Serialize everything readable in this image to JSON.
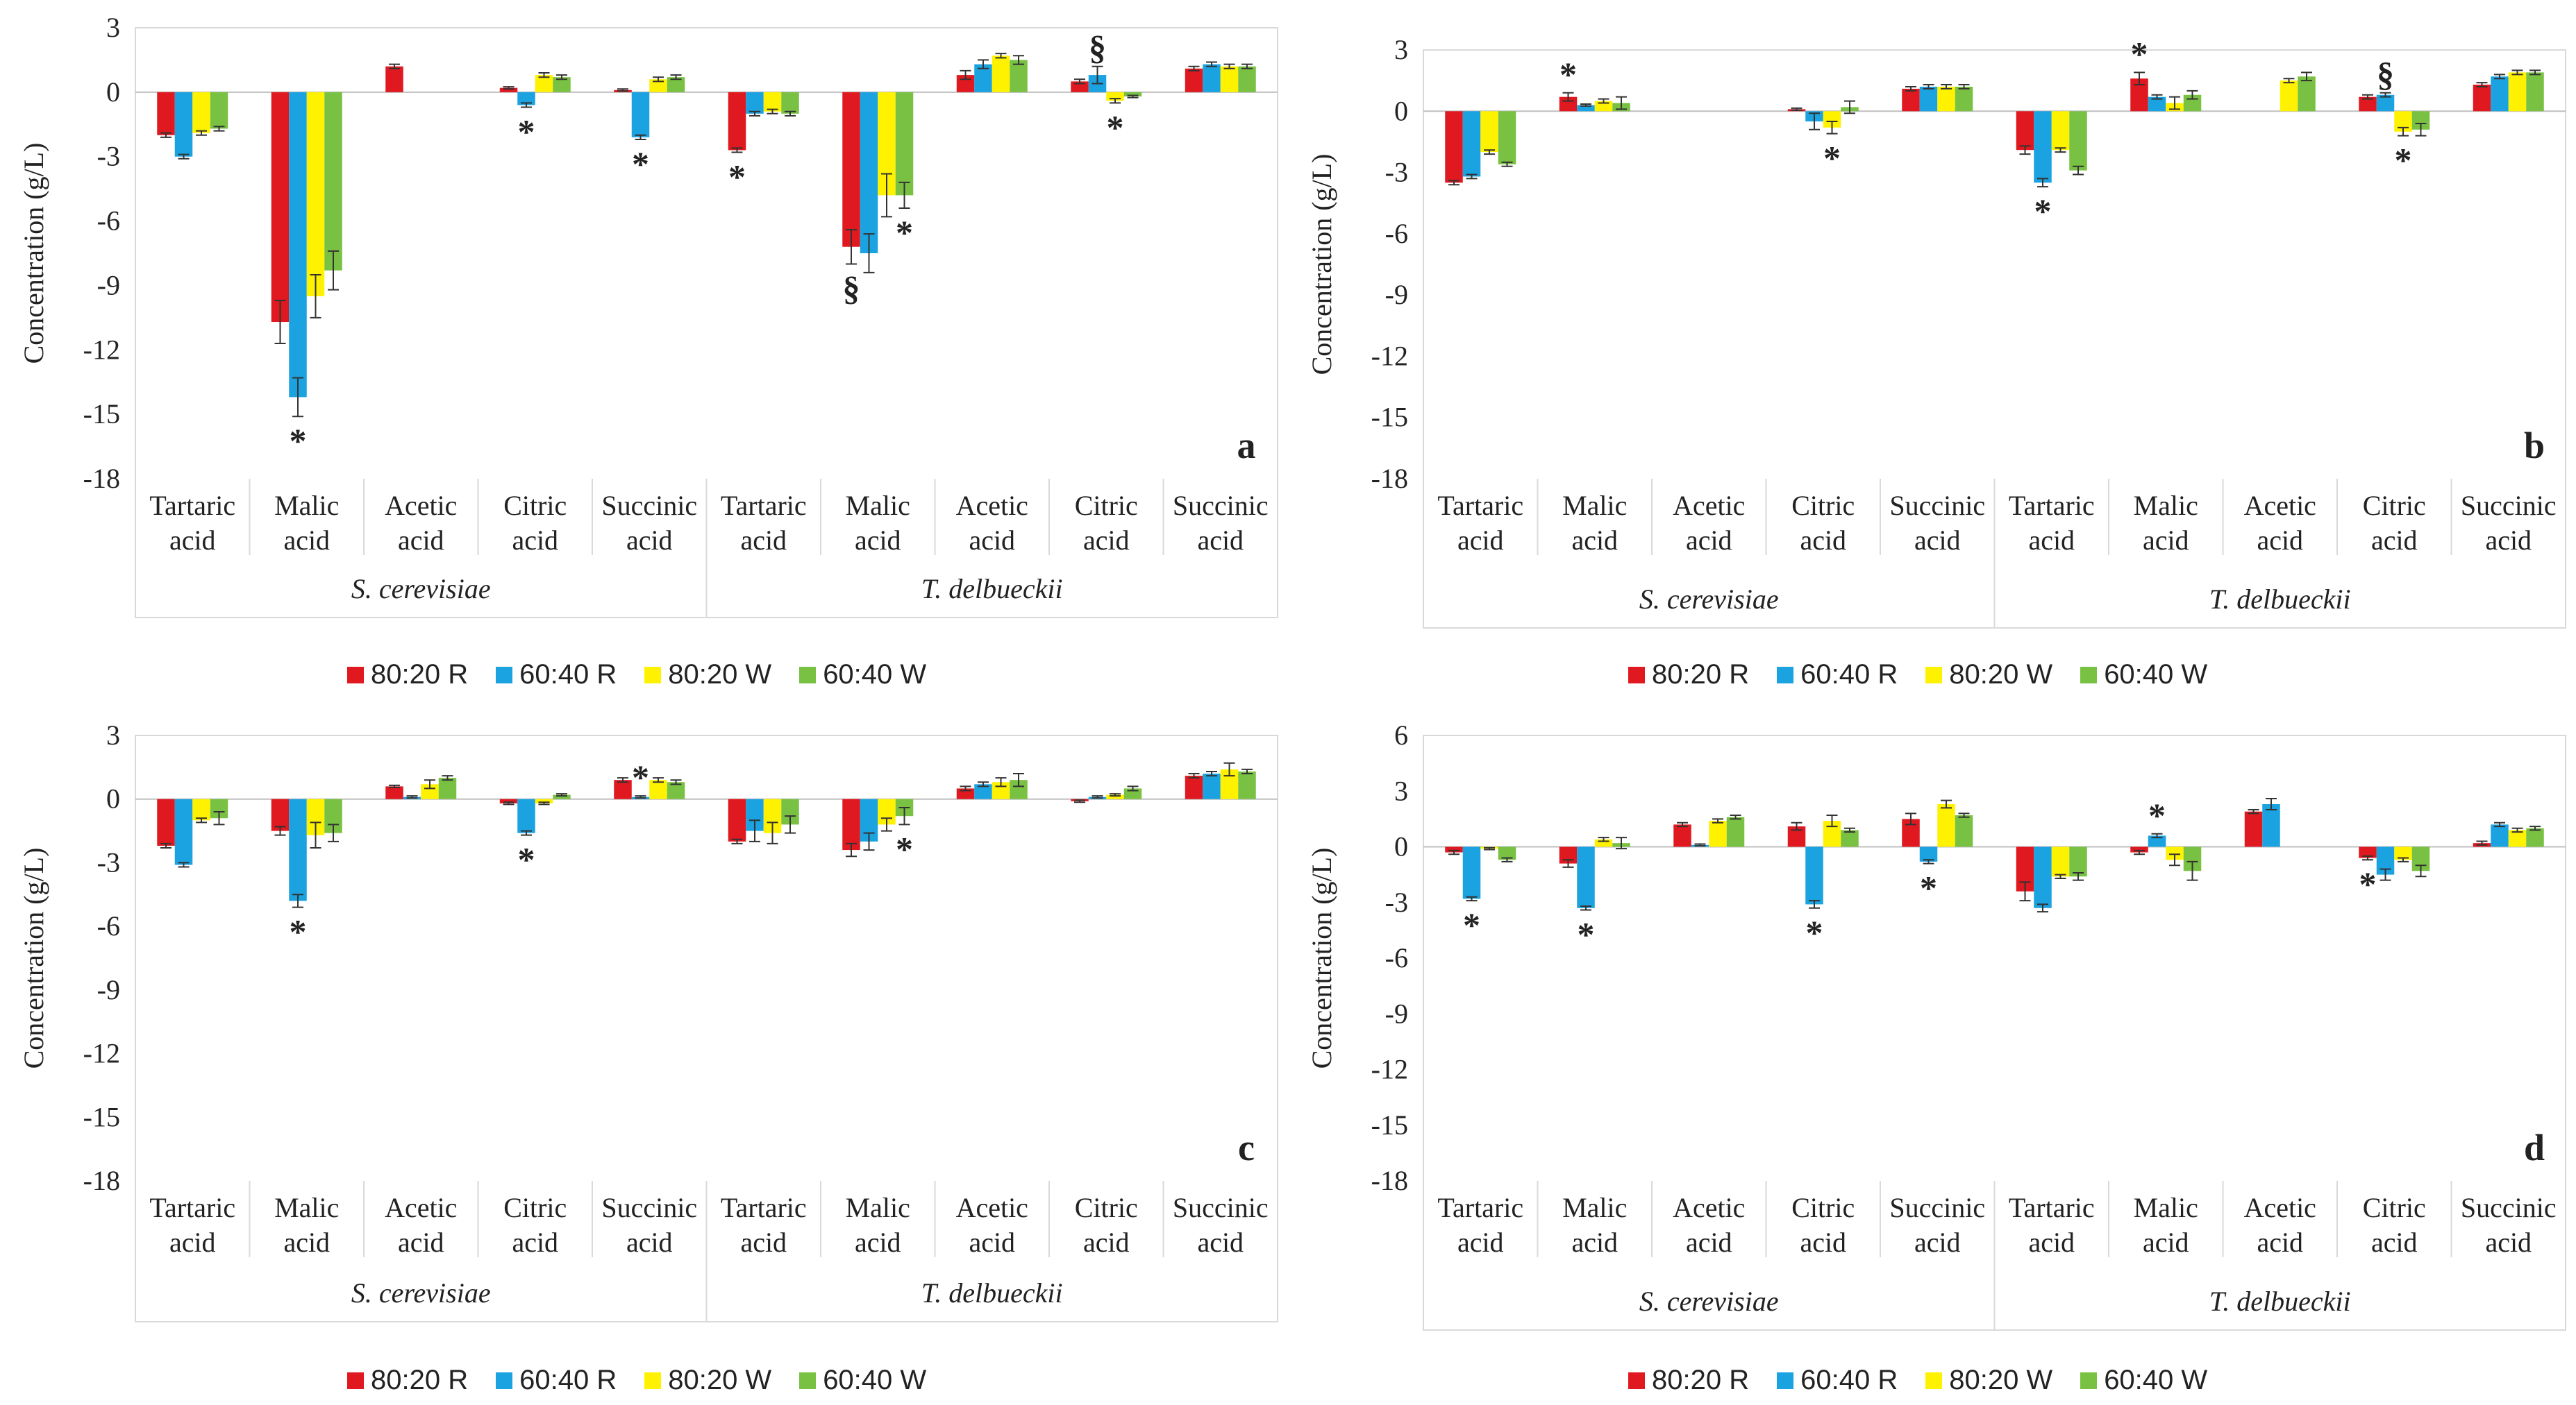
{
  "colors": {
    "s0": "#e0181f",
    "s1": "#1ba2e0",
    "s2": "#fff200",
    "s3": "#79c143"
  },
  "groups": [
    "S. cerevisiae",
    "T. delbueckii"
  ],
  "legend": [
    "80:20 R",
    "60:40 R",
    "80:20 W",
    "60:40 W"
  ],
  "chart_data": [
    {
      "type": "bar",
      "label": "a",
      "ylabel": "Concentration  (g/L)",
      "ylim": [
        -18,
        3
      ],
      "yticks": [
        3,
        0,
        -3,
        -6,
        -9,
        -12,
        -15,
        -18
      ],
      "categories": [
        [
          "Tartaric",
          "acid"
        ],
        [
          "Malic",
          "acid"
        ],
        [
          "Acetic",
          "acid"
        ],
        [
          "Citric",
          "acid"
        ],
        [
          "Succinic",
          "acid"
        ],
        [
          "Tartaric",
          "acid"
        ],
        [
          "Malic",
          "acid"
        ],
        [
          "Acetic",
          "acid"
        ],
        [
          "Citric",
          "acid"
        ],
        [
          "Succinic",
          "acid"
        ]
      ],
      "series": [
        {
          "name": "80:20 R",
          "values": [
            -2.0,
            -10.7,
            1.2,
            0.2,
            0.1,
            -2.7,
            -7.2,
            0.8,
            0.5,
            1.1
          ]
        },
        {
          "name": "60:40 R",
          "values": [
            -3.0,
            -14.2,
            0,
            -0.6,
            -2.1,
            -1.0,
            -7.5,
            1.3,
            0.8,
            1.3
          ]
        },
        {
          "name": "80:20 W",
          "values": [
            -1.9,
            -9.5,
            0,
            0.8,
            0.6,
            -0.9,
            -4.8,
            1.7,
            -0.4,
            1.2
          ]
        },
        {
          "name": "60:40 W",
          "values": [
            -1.7,
            -8.3,
            0,
            0.7,
            0.7,
            -1.0,
            -4.8,
            1.5,
            -0.2,
            1.2
          ]
        }
      ],
      "errors": [
        [
          0.1,
          1.0,
          0.1,
          0.05,
          0.05,
          0.1,
          0.8,
          0.2,
          0.1,
          0.1
        ],
        [
          0.1,
          0.9,
          0,
          0.1,
          0.1,
          0.1,
          0.9,
          0.2,
          0.4,
          0.1
        ],
        [
          0.1,
          1.0,
          0,
          0.1,
          0.1,
          0.1,
          1.0,
          0.1,
          0.1,
          0.1
        ],
        [
          0.1,
          0.9,
          0,
          0.1,
          0.1,
          0.1,
          0.6,
          0.2,
          0.05,
          0.1
        ]
      ],
      "annotations": [
        {
          "cat": 1,
          "series": 1,
          "text": "*",
          "pos": "below"
        },
        {
          "cat": 3,
          "series": 1,
          "text": "*",
          "pos": "below"
        },
        {
          "cat": 4,
          "series": 1,
          "text": "*",
          "pos": "below"
        },
        {
          "cat": 5,
          "series": 0,
          "text": "*",
          "pos": "below"
        },
        {
          "cat": 6,
          "series": 0,
          "text": "§",
          "pos": "below"
        },
        {
          "cat": 6,
          "series": 3,
          "text": "*",
          "pos": "below"
        },
        {
          "cat": 8,
          "series": 1,
          "text": "§",
          "pos": "above"
        },
        {
          "cat": 8,
          "series": 2,
          "text": "*",
          "pos": "below"
        }
      ]
    },
    {
      "type": "bar",
      "label": "b",
      "ylabel": "Concentration  (g/L)",
      "ylim": [
        -18,
        3
      ],
      "yticks": [
        3,
        0,
        -3,
        -6,
        -9,
        -12,
        -15,
        -18
      ],
      "categories": [
        [
          "Tartaric",
          "acid"
        ],
        [
          "Malic",
          "acid"
        ],
        [
          "Acetic",
          "acid"
        ],
        [
          "Citric",
          "acid"
        ],
        [
          "Succinic",
          "acid"
        ],
        [
          "Tartaric",
          "acid"
        ],
        [
          "Malic",
          "acid"
        ],
        [
          "Acetic",
          "acid"
        ],
        [
          "Citric",
          "acid"
        ],
        [
          "Succinic",
          "acid"
        ]
      ],
      "series": [
        {
          "name": "80:20 R",
          "values": [
            -3.5,
            0.7,
            0,
            0.1,
            1.1,
            -1.9,
            1.6,
            0,
            0.7,
            1.3
          ]
        },
        {
          "name": "60:40 R",
          "values": [
            -3.2,
            0.3,
            0,
            -0.5,
            1.2,
            -3.5,
            0.7,
            0,
            0.8,
            1.7
          ]
        },
        {
          "name": "80:20 W",
          "values": [
            -2.0,
            0.5,
            0,
            -0.8,
            1.2,
            -1.9,
            0.4,
            1.5,
            -1.0,
            1.9
          ]
        },
        {
          "name": "60:40 W",
          "values": [
            -2.6,
            0.4,
            0,
            0.2,
            1.2,
            -2.9,
            0.8,
            1.7,
            -0.9,
            1.9
          ]
        }
      ],
      "errors": [
        [
          0.1,
          0.2,
          0,
          0.05,
          0.1,
          0.2,
          0.3,
          0,
          0.1,
          0.1
        ],
        [
          0.1,
          0.05,
          0,
          0.4,
          0.1,
          0.2,
          0.1,
          0,
          0.1,
          0.1
        ],
        [
          0.1,
          0.1,
          0,
          0.3,
          0.1,
          0.1,
          0.3,
          0.1,
          0.2,
          0.1
        ],
        [
          0.1,
          0.3,
          0,
          0.3,
          0.1,
          0.2,
          0.2,
          0.2,
          0.3,
          0.1
        ]
      ],
      "annotations": [
        {
          "cat": 1,
          "series": 0,
          "text": "*",
          "pos": "above"
        },
        {
          "cat": 3,
          "series": 2,
          "text": "*",
          "pos": "below"
        },
        {
          "cat": 5,
          "series": 1,
          "text": "*",
          "pos": "below"
        },
        {
          "cat": 6,
          "series": 0,
          "text": "*",
          "pos": "above"
        },
        {
          "cat": 8,
          "series": 1,
          "text": "§",
          "pos": "above"
        },
        {
          "cat": 8,
          "series": 2,
          "text": "*",
          "pos": "below"
        }
      ]
    },
    {
      "type": "bar",
      "label": "c",
      "ylabel": "Concentration  (g/L)",
      "ylim": [
        -18,
        3
      ],
      "yticks": [
        3,
        0,
        -3,
        -6,
        -9,
        -12,
        -15,
        -18
      ],
      "categories": [
        [
          "Tartaric",
          "acid"
        ],
        [
          "Malic",
          "acid"
        ],
        [
          "Acetic",
          "acid"
        ],
        [
          "Citric",
          "acid"
        ],
        [
          "Succinic",
          "acid"
        ],
        [
          "Tartaric",
          "acid"
        ],
        [
          "Malic",
          "acid"
        ],
        [
          "Acetic",
          "acid"
        ],
        [
          "Citric",
          "acid"
        ],
        [
          "Succinic",
          "acid"
        ]
      ],
      "series": [
        {
          "name": "80:20 R",
          "values": [
            -2.2,
            -1.5,
            0.6,
            -0.2,
            0.9,
            -2.0,
            -2.4,
            0.5,
            -0.1,
            1.1
          ]
        },
        {
          "name": "60:40 R",
          "values": [
            -3.1,
            -4.8,
            0.1,
            -1.6,
            0.1,
            -1.5,
            -2.0,
            0.7,
            0.1,
            1.2
          ]
        },
        {
          "name": "80:20 W",
          "values": [
            -1.0,
            -1.7,
            0.7,
            -0.2,
            0.9,
            -1.6,
            -1.2,
            0.8,
            0.2,
            1.4
          ]
        },
        {
          "name": "60:40 W",
          "values": [
            -0.9,
            -1.6,
            1.0,
            0.2,
            0.8,
            -1.2,
            -0.8,
            0.9,
            0.5,
            1.3
          ]
        }
      ],
      "errors": [
        [
          0.1,
          0.2,
          0.05,
          0.05,
          0.1,
          0.1,
          0.3,
          0.1,
          0.05,
          0.1
        ],
        [
          0.1,
          0.3,
          0.05,
          0.1,
          0.05,
          0.5,
          0.4,
          0.1,
          0.05,
          0.1
        ],
        [
          0.1,
          0.6,
          0.2,
          0.05,
          0.1,
          0.5,
          0.3,
          0.2,
          0.05,
          0.3
        ],
        [
          0.3,
          0.4,
          0.1,
          0.05,
          0.1,
          0.4,
          0.4,
          0.3,
          0.1,
          0.1
        ]
      ],
      "annotations": [
        {
          "cat": 1,
          "series": 1,
          "text": "*",
          "pos": "below"
        },
        {
          "cat": 3,
          "series": 1,
          "text": "*",
          "pos": "below"
        },
        {
          "cat": 4,
          "series": 1,
          "text": "*",
          "pos": "above"
        },
        {
          "cat": 6,
          "series": 3,
          "text": "*",
          "pos": "below"
        }
      ]
    },
    {
      "type": "bar",
      "label": "d",
      "ylabel": "Concentration  (g/L)",
      "ylim": [
        -18,
        6
      ],
      "yticks": [
        6,
        3,
        0,
        -3,
        -6,
        -9,
        -12,
        -15,
        -18
      ],
      "categories": [
        [
          "Tartaric",
          "acid"
        ],
        [
          "Malic",
          "acid"
        ],
        [
          "Acetic",
          "acid"
        ],
        [
          "Citric",
          "acid"
        ],
        [
          "Succinic",
          "acid"
        ],
        [
          "Tartaric",
          "acid"
        ],
        [
          "Malic",
          "acid"
        ],
        [
          "Acetic",
          "acid"
        ],
        [
          "Citric",
          "acid"
        ],
        [
          "Succinic",
          "acid"
        ]
      ],
      "series": [
        {
          "name": "80:20 R",
          "values": [
            -0.3,
            -0.9,
            1.2,
            1.1,
            1.5,
            -2.4,
            -0.3,
            1.9,
            -0.6,
            0.2
          ]
        },
        {
          "name": "60:40 R",
          "values": [
            -2.8,
            -3.3,
            0.1,
            -3.1,
            -0.8,
            -3.3,
            0.6,
            2.3,
            -1.5,
            1.2
          ]
        },
        {
          "name": "80:20 W",
          "values": [
            -0.1,
            0.4,
            1.4,
            1.4,
            2.3,
            -1.6,
            -0.7,
            0,
            -0.7,
            0.9
          ]
        },
        {
          "name": "60:40 W",
          "values": [
            -0.7,
            0.2,
            1.6,
            0.9,
            1.7,
            -1.6,
            -1.3,
            0,
            -1.3,
            1.0
          ]
        }
      ],
      "errors": [
        [
          0.1,
          0.2,
          0.1,
          0.2,
          0.3,
          0.5,
          0.1,
          0.1,
          0.1,
          0.1
        ],
        [
          0.1,
          0.1,
          0.05,
          0.2,
          0.1,
          0.2,
          0.1,
          0.3,
          0.3,
          0.1
        ],
        [
          0.05,
          0.1,
          0.1,
          0.3,
          0.2,
          0.1,
          0.3,
          0,
          0.1,
          0.1
        ],
        [
          0.1,
          0.3,
          0.1,
          0.1,
          0.1,
          0.2,
          0.5,
          0,
          0.3,
          0.1
        ]
      ],
      "annotations": [
        {
          "cat": 0,
          "series": 1,
          "text": "*",
          "pos": "below"
        },
        {
          "cat": 1,
          "series": 1,
          "text": "*",
          "pos": "below"
        },
        {
          "cat": 3,
          "series": 1,
          "text": "*",
          "pos": "below"
        },
        {
          "cat": 4,
          "series": 1,
          "text": "*",
          "pos": "below"
        },
        {
          "cat": 6,
          "series": 1,
          "text": "*",
          "pos": "above"
        },
        {
          "cat": 8,
          "series": 0,
          "text": "*",
          "pos": "below"
        }
      ]
    }
  ]
}
